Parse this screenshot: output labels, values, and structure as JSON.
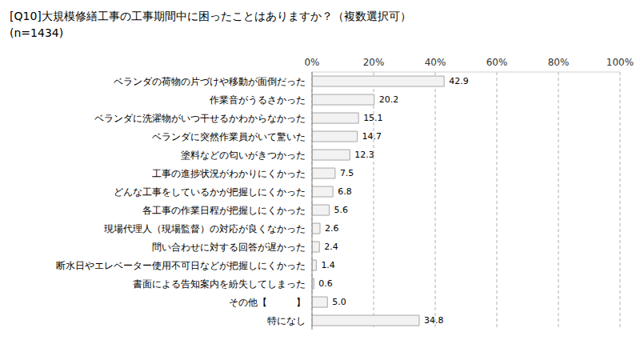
{
  "chart_data": {
    "type": "bar",
    "orientation": "horizontal",
    "title": "[Q10]大規模修繕工事の工事期間中に困ったことはありますか？（複数選択可）",
    "subtitle": "(n=1434)",
    "categories": [
      "ベランダの荷物の片づけや移動が面倒だった",
      "作業音がうるさかった",
      "ベランダに洗濯物がいつ干せるかわからなかった",
      "ベランダに突然作業員がいて驚いた",
      "塗料などの匂いがきつかった",
      "工事の進捗状況がわかりにくかった",
      "どんな工事をしているかが把握しにくかった",
      "各工事の作業日程が把握しにくかった",
      "現場代理人（現場監督）の対応が良くなかった",
      "問い合わせに対する回答が遅かった",
      "断水日やエレベーター使用不可日などが把握しにくかった",
      "書面による告知案内を紛失してしまった",
      "その他【　　　】",
      "特になし"
    ],
    "values": [
      42.9,
      20.2,
      15.1,
      14.7,
      12.3,
      7.5,
      6.8,
      5.6,
      2.6,
      2.4,
      1.4,
      0.6,
      5.0,
      34.8
    ],
    "value_labels": [
      "42.9",
      "20.2",
      "15.1",
      "14.7",
      "12.3",
      "7.5",
      "6.8",
      "5.6",
      "2.6",
      "2.4",
      "1.4",
      "0.6",
      "5.0",
      "34.8"
    ],
    "color": "#f2f2f2",
    "xlim": [
      0,
      100
    ],
    "xticks": [
      {
        "value": 0,
        "label": "0%"
      },
      {
        "value": 20,
        "label": "20%"
      },
      {
        "value": 40,
        "label": "40%"
      },
      {
        "value": 60,
        "label": "60%"
      },
      {
        "value": 80,
        "label": "80%"
      },
      {
        "value": 100,
        "label": "100%"
      }
    ],
    "grid": true,
    "data_labels": true
  }
}
